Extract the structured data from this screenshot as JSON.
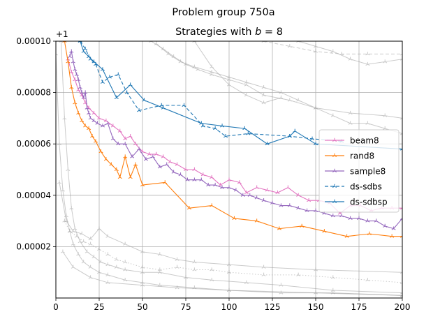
{
  "chart_data": {
    "type": "line",
    "suptitle": "Problem group 750a",
    "title": "Strategies with b = 8",
    "title_prefix": "Strategies with ",
    "title_var": "b",
    "title_suffix": " = 8",
    "y_offset_label": "+1",
    "xlim": [
      0,
      200
    ],
    "ylim": [
      0.0,
      0.0001
    ],
    "x_ticks": [
      0,
      25,
      50,
      75,
      100,
      125,
      150,
      175,
      200
    ],
    "y_ticks": [
      2e-05,
      4e-05,
      6e-05,
      8e-05,
      0.0001
    ],
    "y_tick_labels": [
      "0.00002",
      "0.00004",
      "0.00006",
      "0.00008",
      "0.00010"
    ],
    "grid": true,
    "legend_position": "center-right",
    "series": [
      {
        "name": "beam8",
        "color": "#e377c2",
        "style": "solid",
        "x": [
          7,
          9,
          11,
          13,
          15,
          17,
          19,
          22,
          25,
          29,
          33,
          37,
          40,
          43,
          46,
          50,
          54,
          58,
          62,
          66,
          70,
          75,
          80,
          85,
          90,
          95,
          100,
          106,
          110,
          116,
          122,
          128,
          134,
          140,
          146,
          152,
          158,
          164,
          170,
          176,
          182,
          188,
          194,
          200
        ],
        "y": [
          9.3e-05,
          8.8e-05,
          8.5e-05,
          8.1e-05,
          7.9e-05,
          7.6e-05,
          7.4e-05,
          7.2e-05,
          7e-05,
          6.9e-05,
          6.7e-05,
          6.5e-05,
          6.2e-05,
          6.3e-05,
          6e-05,
          5.7e-05,
          5.6e-05,
          5.6e-05,
          5.5e-05,
          5.3e-05,
          5.2e-05,
          5e-05,
          5e-05,
          4.8e-05,
          4.7e-05,
          4.4e-05,
          4.6e-05,
          4.5e-05,
          4.1e-05,
          4.3e-05,
          4.2e-05,
          4.1e-05,
          4.3e-05,
          4e-05,
          3.8e-05,
          3.8e-05,
          3.7e-05,
          3.3e-05,
          3.6e-05,
          3.6e-05,
          3.4e-05,
          3.5e-05,
          3.5e-05,
          3.5e-05
        ]
      },
      {
        "name": "rand8",
        "color": "#ff7f0e",
        "style": "solid",
        "x": [
          5,
          7,
          9,
          11,
          13,
          15,
          17,
          19,
          21,
          23,
          26,
          29,
          32,
          35,
          37,
          40,
          43,
          46,
          50,
          63,
          77,
          90,
          103,
          116,
          129,
          142,
          155,
          168,
          181,
          194,
          200
        ],
        "y": [
          0.0001,
          9.2e-05,
          8.2e-05,
          7.6e-05,
          7.2e-05,
          6.9e-05,
          6.7e-05,
          6.6e-05,
          6.3e-05,
          6.1e-05,
          5.7e-05,
          5.4e-05,
          5.2e-05,
          5e-05,
          4.7e-05,
          5.5e-05,
          4.7e-05,
          5.2e-05,
          4.4e-05,
          4.5e-05,
          3.5e-05,
          3.6e-05,
          3.1e-05,
          3e-05,
          2.7e-05,
          2.8e-05,
          2.6e-05,
          2.4e-05,
          2.5e-05,
          2.4e-05,
          2.4e-05
        ]
      },
      {
        "name": "sample8",
        "color": "#9467bd",
        "style": "solid",
        "x": [
          8,
          9,
          10,
          11,
          12,
          13,
          14,
          15,
          16,
          17,
          18,
          19,
          20,
          22,
          24,
          27,
          30,
          33,
          36,
          40,
          44,
          48,
          52,
          56,
          60,
          64,
          68,
          72,
          76,
          80,
          84,
          88,
          92,
          96,
          100,
          104,
          108,
          112,
          116,
          120,
          125,
          130,
          135,
          140,
          145,
          150,
          155,
          160,
          165,
          170,
          175,
          180,
          185,
          190,
          195,
          200
        ],
        "y": [
          9.4e-05,
          9.6e-05,
          9.2e-05,
          8.9e-05,
          8.7e-05,
          8.5e-05,
          8.2e-05,
          8e-05,
          7.8e-05,
          8e-05,
          7.4e-05,
          7.2e-05,
          7e-05,
          6.9e-05,
          6.8e-05,
          6.7e-05,
          6.8e-05,
          6.2e-05,
          6e-05,
          6e-05,
          5.5e-05,
          5.8e-05,
          5.4e-05,
          5.5e-05,
          5.1e-05,
          5.2e-05,
          4.9e-05,
          4.8e-05,
          4.6e-05,
          4.6e-05,
          4.6e-05,
          4.4e-05,
          4.4e-05,
          4.3e-05,
          4.3e-05,
          4.2e-05,
          4e-05,
          4e-05,
          3.9e-05,
          3.8e-05,
          3.7e-05,
          3.6e-05,
          3.6e-05,
          3.5e-05,
          3.4e-05,
          3.4e-05,
          3.3e-05,
          3.2e-05,
          3.2e-05,
          3.1e-05,
          3.1e-05,
          3e-05,
          3e-05,
          2.8e-05,
          2.7e-05,
          3.1e-05
        ]
      },
      {
        "name": "ds-sdbs",
        "color": "#1f77b4",
        "style": "dashed",
        "x": [
          14,
          17,
          20,
          23,
          27,
          31,
          36,
          41,
          48,
          61,
          74,
          85,
          92,
          98,
          111,
          135,
          148,
          165
        ],
        "y": [
          0.0001,
          9.7e-05,
          9.3e-05,
          9.1e-05,
          8.4e-05,
          8.6e-05,
          8.7e-05,
          8e-05,
          7.3e-05,
          7.5e-05,
          7.5e-05,
          6.7e-05,
          6.6e-05,
          6.3e-05,
          6.4e-05,
          6.3e-05,
          6.2e-05,
          6.1e-05
        ]
      },
      {
        "name": "ds-sdbsp",
        "color": "#1f77b4",
        "style": "solid",
        "x": [
          14,
          16,
          19,
          22,
          27,
          35,
          43,
          51,
          62,
          84,
          96,
          109,
          122,
          135,
          138,
          150,
          200
        ],
        "y": [
          0.0001,
          9.6e-05,
          9.4e-05,
          9.2e-05,
          8.9e-05,
          7.8e-05,
          8.3e-05,
          7.7e-05,
          7.4e-05,
          6.8e-05,
          6.7e-05,
          6.6e-05,
          6e-05,
          6.3e-05,
          6.5e-05,
          6e-05,
          5.8e-05
        ]
      }
    ],
    "background_series": [
      {
        "style": "solid",
        "x": [
          0,
          2,
          4,
          6,
          8,
          10,
          13,
          16,
          20,
          25,
          30,
          40,
          50,
          60,
          80,
          100,
          130,
          160,
          200
        ],
        "y": [
          9.5e-05,
          6e-05,
          4.2e-05,
          3.2e-05,
          2.6e-05,
          2.1e-05,
          1.7e-05,
          1.4e-05,
          1.2e-05,
          1e-05,
          9e-06,
          7e-06,
          6e-06,
          5e-06,
          4e-06,
          3e-06,
          2e-06,
          2e-06,
          1e-06
        ]
      },
      {
        "style": "solid",
        "x": [
          3,
          5,
          7,
          9,
          11,
          14,
          18,
          22,
          26,
          30,
          35,
          40,
          50,
          60,
          75,
          90,
          110,
          130,
          160,
          200
        ],
        "y": [
          0.0001,
          7e-05,
          5e-05,
          3.5e-05,
          2.7e-05,
          2.2e-05,
          1.8e-05,
          1.6e-05,
          1.4e-05,
          1.3e-05,
          1.2e-05,
          1.1e-05,
          1e-05,
          1e-05,
          8e-06,
          7e-06,
          6e-06,
          5e-06,
          3e-06,
          2e-06
        ]
      },
      {
        "style": "dotted",
        "x": [
          5,
          8,
          12,
          16,
          20,
          25,
          30,
          35,
          40,
          50,
          60,
          70,
          80,
          90,
          100,
          120,
          140,
          160,
          180,
          200
        ],
        "y": [
          3e-05,
          2.6e-05,
          2.4e-05,
          2.2e-05,
          2.1e-05,
          1.9e-05,
          1.7e-05,
          1.5e-05,
          1.4e-05,
          1.2e-05,
          1.1e-05,
          1.2e-05,
          1.1e-05,
          1.1e-05,
          1e-05,
          9e-06,
          9e-06,
          8e-06,
          7e-06,
          6e-06
        ]
      },
      {
        "style": "solid",
        "x": [
          2,
          6,
          10,
          15,
          20,
          25,
          30,
          40,
          50,
          60,
          70,
          80,
          100,
          120,
          150,
          200
        ],
        "y": [
          4.5e-05,
          3e-05,
          2.6e-05,
          2.5e-05,
          2.3e-05,
          2.7e-05,
          2.4e-05,
          2.1e-05,
          1.8e-05,
          1.7e-05,
          1.5e-05,
          1.4e-05,
          1.3e-05,
          1.2e-05,
          1.1e-05,
          1e-05
        ]
      },
      {
        "style": "solid",
        "x": [
          4,
          10,
          20,
          30,
          50,
          70,
          100,
          150,
          200
        ],
        "y": [
          1.8e-05,
          1.2e-05,
          8e-06,
          6e-06,
          5e-06,
          4e-06,
          3e-06,
          2e-06,
          1e-06
        ]
      },
      {
        "style": "solid",
        "x": [
          55,
          62,
          68,
          75,
          82,
          90,
          100,
          110,
          120,
          135,
          150,
          170,
          190,
          200
        ],
        "y": [
          0.0001,
          9.7e-05,
          9.4e-05,
          9.1e-05,
          8.9e-05,
          8.7e-05,
          8.5e-05,
          8.3e-05,
          7.9e-05,
          7.7e-05,
          7.4e-05,
          7.2e-05,
          7.1e-05,
          7e-05
        ]
      },
      {
        "style": "solid",
        "x": [
          58,
          65,
          72,
          80,
          90,
          100,
          110,
          120,
          130,
          140,
          150,
          160,
          170,
          180,
          190,
          200
        ],
        "y": [
          9.9e-05,
          9.5e-05,
          9.2e-05,
          9e-05,
          8.8e-05,
          8.6e-05,
          8.4e-05,
          8.2e-05,
          8e-05,
          7.7e-05,
          7.4e-05,
          7.1e-05,
          6.8e-05,
          6.8e-05,
          6.6e-05,
          6.4e-05
        ]
      },
      {
        "style": "dashed",
        "x": [
          120,
          135,
          150,
          165,
          180,
          200
        ],
        "y": [
          0.0001,
          9.8e-05,
          9.6e-05,
          9.5e-05,
          9.5e-05,
          9.5e-05
        ]
      },
      {
        "style": "solid",
        "x": [
          140,
          150,
          160,
          170,
          180,
          190,
          200
        ],
        "y": [
          0.0001,
          9.8e-05,
          9.6e-05,
          9.3e-05,
          9.1e-05,
          9.2e-05,
          9.3e-05
        ]
      },
      {
        "style": "solid",
        "x": [
          80,
          90,
          100,
          110,
          120,
          130
        ],
        "y": [
          0.0001,
          9e-05,
          8.3e-05,
          7.9e-05,
          7.6e-05,
          7.8e-05
        ]
      }
    ]
  }
}
